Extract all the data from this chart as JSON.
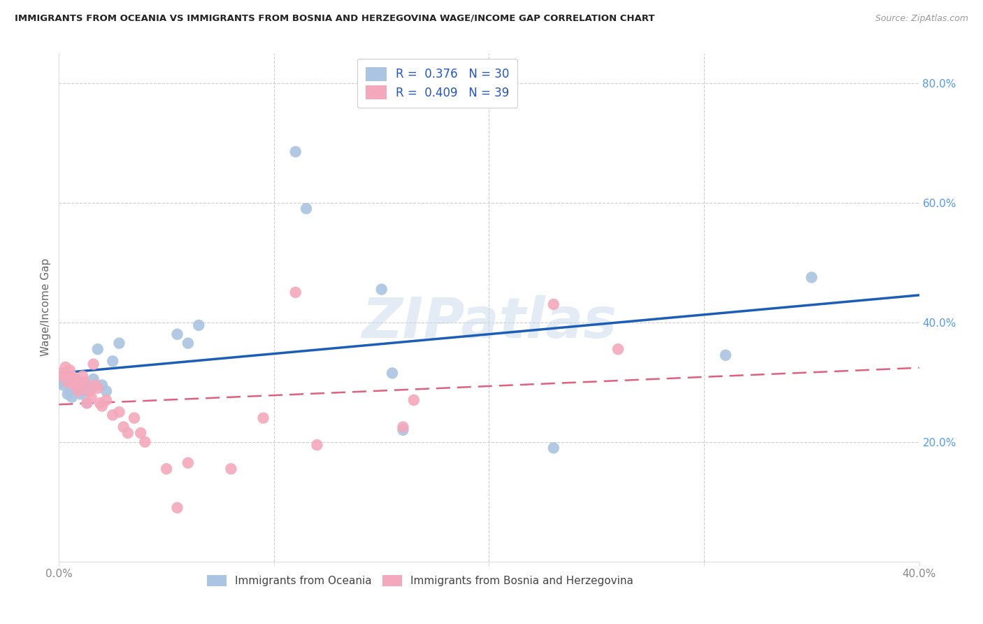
{
  "title": "IMMIGRANTS FROM OCEANIA VS IMMIGRANTS FROM BOSNIA AND HERZEGOVINA WAGE/INCOME GAP CORRELATION CHART",
  "source": "Source: ZipAtlas.com",
  "ylabel": "Wage/Income Gap",
  "xlim": [
    0.0,
    0.4
  ],
  "ylim": [
    0.0,
    0.85
  ],
  "oceania_color": "#aac4e2",
  "bosnia_color": "#f4a8bc",
  "trendline_oceania_color": "#1a5eb8",
  "trendline_bosnia_color": "#e06080",
  "R_oceania": 0.376,
  "N_oceania": 30,
  "R_bosnia": 0.409,
  "N_bosnia": 39,
  "watermark": "ZIPatlas",
  "legend_oceania": "Immigrants from Oceania",
  "legend_bosnia": "Immigrants from Bosnia and Herzegovina",
  "oceania_x": [
    0.001,
    0.002,
    0.003,
    0.004,
    0.005,
    0.006,
    0.008,
    0.009,
    0.01,
    0.011,
    0.012,
    0.013,
    0.015,
    0.016,
    0.018,
    0.02,
    0.022,
    0.025,
    0.028,
    0.055,
    0.06,
    0.065,
    0.11,
    0.115,
    0.15,
    0.155,
    0.16,
    0.23,
    0.31,
    0.35
  ],
  "oceania_y": [
    0.3,
    0.295,
    0.305,
    0.28,
    0.285,
    0.275,
    0.295,
    0.29,
    0.28,
    0.285,
    0.295,
    0.265,
    0.29,
    0.305,
    0.355,
    0.295,
    0.285,
    0.335,
    0.365,
    0.38,
    0.365,
    0.395,
    0.685,
    0.59,
    0.455,
    0.315,
    0.22,
    0.19,
    0.345,
    0.475
  ],
  "bosnia_x": [
    0.001,
    0.002,
    0.003,
    0.004,
    0.005,
    0.006,
    0.007,
    0.008,
    0.009,
    0.01,
    0.011,
    0.012,
    0.013,
    0.014,
    0.015,
    0.016,
    0.017,
    0.018,
    0.019,
    0.02,
    0.022,
    0.025,
    0.028,
    0.03,
    0.032,
    0.035,
    0.038,
    0.04,
    0.05,
    0.055,
    0.06,
    0.08,
    0.095,
    0.11,
    0.12,
    0.16,
    0.165,
    0.23,
    0.26
  ],
  "bosnia_y": [
    0.315,
    0.31,
    0.325,
    0.3,
    0.32,
    0.31,
    0.295,
    0.305,
    0.285,
    0.295,
    0.31,
    0.3,
    0.265,
    0.285,
    0.275,
    0.33,
    0.295,
    0.29,
    0.265,
    0.26,
    0.27,
    0.245,
    0.25,
    0.225,
    0.215,
    0.24,
    0.215,
    0.2,
    0.155,
    0.09,
    0.165,
    0.155,
    0.24,
    0.45,
    0.195,
    0.225,
    0.27,
    0.43,
    0.355
  ]
}
